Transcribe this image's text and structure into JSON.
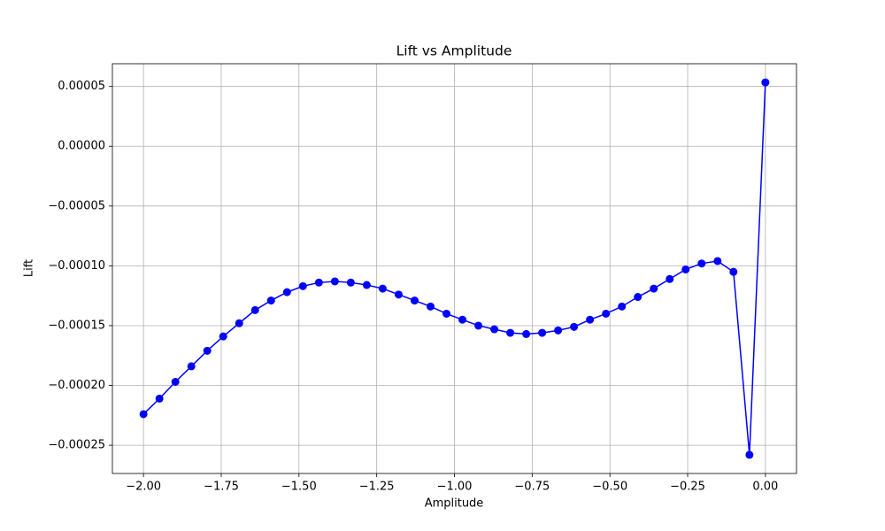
{
  "chart_data": {
    "type": "line",
    "title": "Lift vs Amplitude",
    "x_label": "Amplitude",
    "y_label": "Lift",
    "x": [
      -2.0,
      -1.9487,
      -1.8974,
      -1.8462,
      -1.7949,
      -1.7436,
      -1.6923,
      -1.641,
      -1.5897,
      -1.5385,
      -1.4872,
      -1.4359,
      -1.3846,
      -1.3333,
      -1.2821,
      -1.2308,
      -1.1795,
      -1.1282,
      -1.0769,
      -1.0256,
      -0.9744,
      -0.9231,
      -0.8718,
      -0.8205,
      -0.7692,
      -0.7179,
      -0.6667,
      -0.6154,
      -0.5641,
      -0.5128,
      -0.4615,
      -0.4103,
      -0.359,
      -0.3077,
      -0.2564,
      -0.2051,
      -0.1538,
      -0.1026,
      -0.0513,
      0.0
    ],
    "series": [
      {
        "name": "Lift",
        "color": "#0000ff",
        "marker": "o",
        "values": [
          -0.000224,
          -0.000211,
          -0.000197,
          -0.000184,
          -0.000171,
          -0.000159,
          -0.000148,
          -0.000137,
          -0.000129,
          -0.000122,
          -0.000117,
          -0.000114,
          -0.000113,
          -0.000114,
          -0.000116,
          -0.000119,
          -0.000124,
          -0.000129,
          -0.000134,
          -0.00014,
          -0.000145,
          -0.00015,
          -0.000153,
          -0.000156,
          -0.000157,
          -0.000156,
          -0.000154,
          -0.000151,
          -0.000145,
          -0.00014,
          -0.000134,
          -0.000126,
          -0.000119,
          -0.000111,
          -0.000103,
          -9.8e-05,
          -9.6e-05,
          -0.000105,
          -0.000258,
          5.34e-05
        ]
      }
    ],
    "xlim": [
      -2.1,
      0.1
    ],
    "ylim": [
      -0.0002736,
      6.9e-05
    ],
    "xticks": [
      {
        "value": -2.0,
        "label": "−2.00"
      },
      {
        "value": -1.75,
        "label": "−1.75"
      },
      {
        "value": -1.5,
        "label": "−1.50"
      },
      {
        "value": -1.25,
        "label": "−1.25"
      },
      {
        "value": -1.0,
        "label": "−1.00"
      },
      {
        "value": -0.75,
        "label": "−0.75"
      },
      {
        "value": -0.5,
        "label": "−0.50"
      },
      {
        "value": -0.25,
        "label": "−0.25"
      },
      {
        "value": 0.0,
        "label": "0.00"
      }
    ],
    "yticks": [
      {
        "value": -0.00025,
        "label": "−0.00025"
      },
      {
        "value": -0.0002,
        "label": "−0.00020"
      },
      {
        "value": -0.00015,
        "label": "−0.00015"
      },
      {
        "value": -0.0001,
        "label": "−0.00010"
      },
      {
        "value": -5e-05,
        "label": "−0.00005"
      },
      {
        "value": 0,
        "label": "0.00000"
      },
      {
        "value": 5e-05,
        "label": "0.00005"
      }
    ],
    "grid": true
  }
}
